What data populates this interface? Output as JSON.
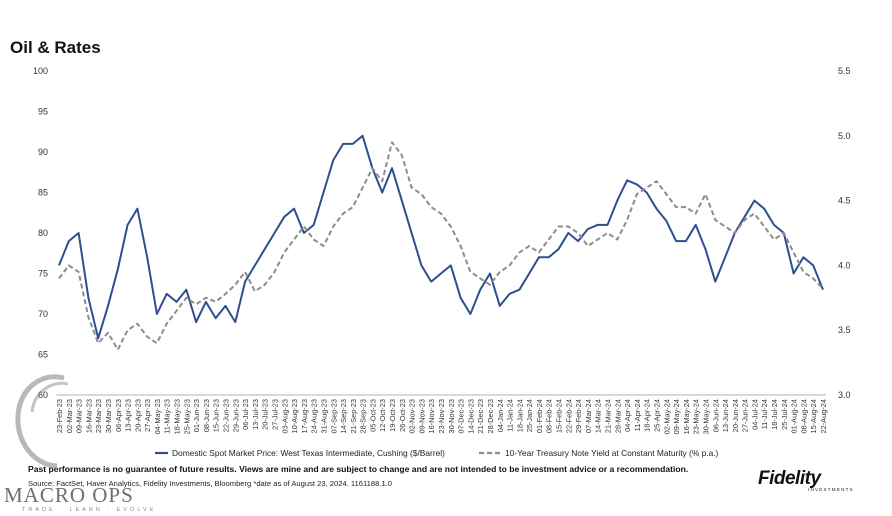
{
  "page": {
    "title": "Oil & Rates",
    "disclaimer": "Past performance is no guarantee of future results. Views are mine and are subject to change and are not intended to be investment advice or a recommendation.",
    "source": "Source: FactSet, Haver Analytics, Fidelity Investments, Bloomberg *date as of August 23, 2024. 1161188.1.0",
    "logo": "Fidelity",
    "logo_sub": "INVESTMENTS",
    "watermark": "MACRO OPS",
    "watermark_sub": "TRADE · LEARN · EVOLVE"
  },
  "colors": {
    "oil": "#2e4f8f",
    "rates": "#8c8c8c"
  },
  "chart_data": {
    "type": "line",
    "x": [
      "23-Feb-23",
      "02-Mar-23",
      "09-Mar-23",
      "16-Mar-23",
      "23-Mar-23",
      "30-Mar-23",
      "06-Apr-23",
      "13-Apr-23",
      "20-Apr-23",
      "27-Apr-23",
      "04-May-23",
      "11-May-23",
      "18-May-23",
      "25-May-23",
      "01-Jun-23",
      "08-Jun-23",
      "15-Jun-23",
      "22-Jun-23",
      "29-Jun-23",
      "06-Jul-23",
      "13-Jul-23",
      "20-Jul-23",
      "27-Jul-23",
      "03-Aug-23",
      "10-Aug-23",
      "17-Aug-23",
      "24-Aug-23",
      "31-Aug-23",
      "07-Sep-23",
      "14-Sep-23",
      "21-Sep-23",
      "28-Sep-23",
      "05-Oct-23",
      "12-Oct-23",
      "19-Oct-23",
      "26-Oct-23",
      "02-Nov-23",
      "09-Nov-23",
      "16-Nov-23",
      "23-Nov-23",
      "30-Nov-23",
      "07-Dec-23",
      "14-Dec-23",
      "21-Dec-23",
      "28-Dec-23",
      "04-Jan-24",
      "11-Jan-24",
      "18-Jan-24",
      "25-Jan-24",
      "01-Feb-24",
      "08-Feb-24",
      "15-Feb-24",
      "22-Feb-24",
      "29-Feb-24",
      "07-Mar-24",
      "14-Mar-24",
      "21-Mar-24",
      "28-Mar-24",
      "04-Apr-24",
      "11-Apr-24",
      "18-Apr-24",
      "25-Apr-24",
      "02-May-24",
      "09-May-24",
      "16-May-24",
      "23-May-24",
      "30-May-24",
      "06-Jun-24",
      "13-Jun-24",
      "20-Jun-24",
      "27-Jun-24",
      "04-Jul-24",
      "11-Jul-24",
      "18-Jul-24",
      "25-Jul-24",
      "01-Aug-24",
      "08-Aug-24",
      "15-Aug-24",
      "22-Aug-24"
    ],
    "series": [
      {
        "name": "Domestic Spot Market Price: West Texas Intermediate, Cushing ($/Barrel)",
        "axis": "left",
        "style": "solid",
        "values": [
          76,
          79,
          80,
          72,
          67,
          71,
          75.5,
          81,
          83,
          77,
          70,
          72.5,
          71.5,
          73,
          69,
          71.5,
          69.5,
          71,
          69,
          74,
          76,
          78,
          80,
          82,
          83,
          80,
          81,
          85,
          89,
          91,
          91,
          92,
          88,
          85,
          88,
          84,
          80,
          76,
          74,
          75,
          76,
          72,
          70,
          73,
          75,
          71,
          72.5,
          73,
          75,
          77,
          77,
          78,
          80,
          79,
          80.5,
          81,
          81,
          84,
          86.5,
          86,
          85,
          83,
          81.5,
          79,
          79,
          81,
          78,
          74,
          77,
          80,
          82,
          84,
          83,
          81,
          80,
          75,
          77,
          76,
          73
        ]
      },
      {
        "name": "10-Year Treasury Note Yield at Constant Maturity (% p.a.)",
        "axis": "right",
        "style": "dashed",
        "values": [
          3.9,
          4.0,
          3.95,
          3.6,
          3.4,
          3.48,
          3.35,
          3.5,
          3.55,
          3.45,
          3.4,
          3.55,
          3.65,
          3.75,
          3.7,
          3.75,
          3.72,
          3.78,
          3.85,
          3.95,
          3.8,
          3.85,
          3.95,
          4.1,
          4.2,
          4.3,
          4.2,
          4.15,
          4.3,
          4.4,
          4.45,
          4.6,
          4.75,
          4.65,
          4.95,
          4.85,
          4.6,
          4.55,
          4.45,
          4.4,
          4.3,
          4.15,
          3.95,
          3.9,
          3.85,
          3.95,
          4.0,
          4.1,
          4.15,
          4.1,
          4.2,
          4.3,
          4.3,
          4.25,
          4.15,
          4.2,
          4.25,
          4.2,
          4.35,
          4.55,
          4.6,
          4.65,
          4.55,
          4.45,
          4.45,
          4.4,
          4.55,
          4.35,
          4.3,
          4.25,
          4.35,
          4.4,
          4.3,
          4.2,
          4.25,
          4.1,
          3.95,
          3.9,
          3.82
        ]
      }
    ],
    "y_left": {
      "min": 60,
      "max": 100,
      "ticks": [
        60,
        65,
        70,
        75,
        80,
        85,
        90,
        95,
        100
      ]
    },
    "y_right": {
      "min": 3.0,
      "max": 5.5,
      "ticks": [
        "3.0",
        "3.5",
        "4.0",
        "4.5",
        "5.0",
        "5.5"
      ]
    },
    "grid": false,
    "legend_position": "bottom"
  }
}
